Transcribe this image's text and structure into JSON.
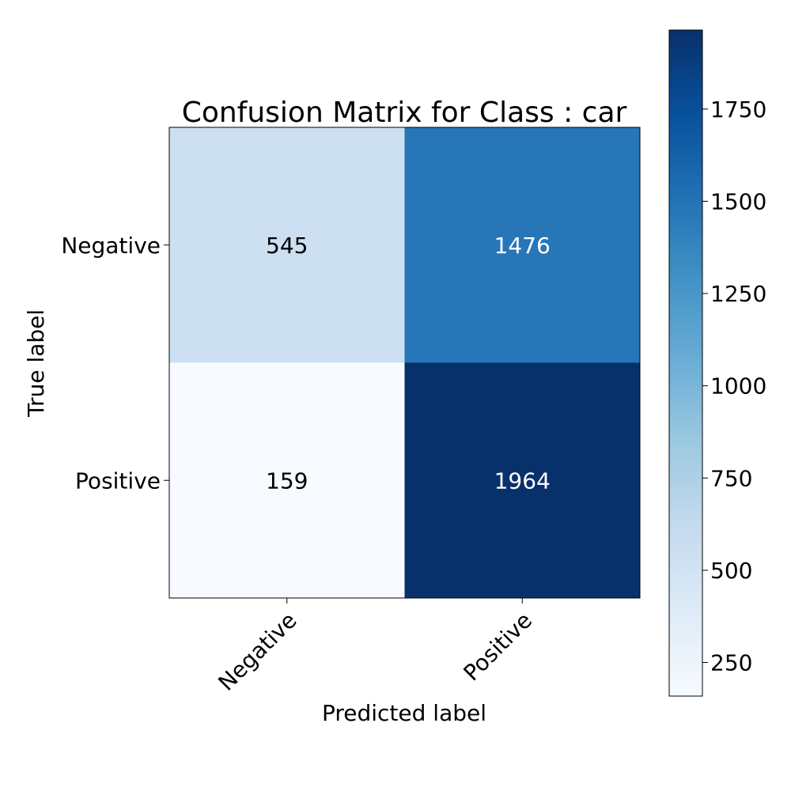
{
  "chart_data": {
    "type": "heatmap",
    "title": "Confusion Matrix for Class : car",
    "xlabel": "Predicted label",
    "ylabel": "True label",
    "x_categories": [
      "Negative",
      "Positive"
    ],
    "y_categories": [
      "Negative",
      "Positive"
    ],
    "values": [
      [
        545,
        1476
      ],
      [
        159,
        1964
      ]
    ],
    "cell_labels": [
      [
        "545",
        "1476"
      ],
      [
        "159",
        "1964"
      ]
    ],
    "colormap": "Blues",
    "value_range": [
      159,
      1964
    ],
    "colorbar": {
      "ticks": [
        250,
        500,
        750,
        1000,
        1250,
        1500,
        1750
      ],
      "tick_labels": [
        "250",
        "500",
        "750",
        "1000",
        "1250",
        "1500",
        "1750"
      ]
    },
    "grid": false
  }
}
